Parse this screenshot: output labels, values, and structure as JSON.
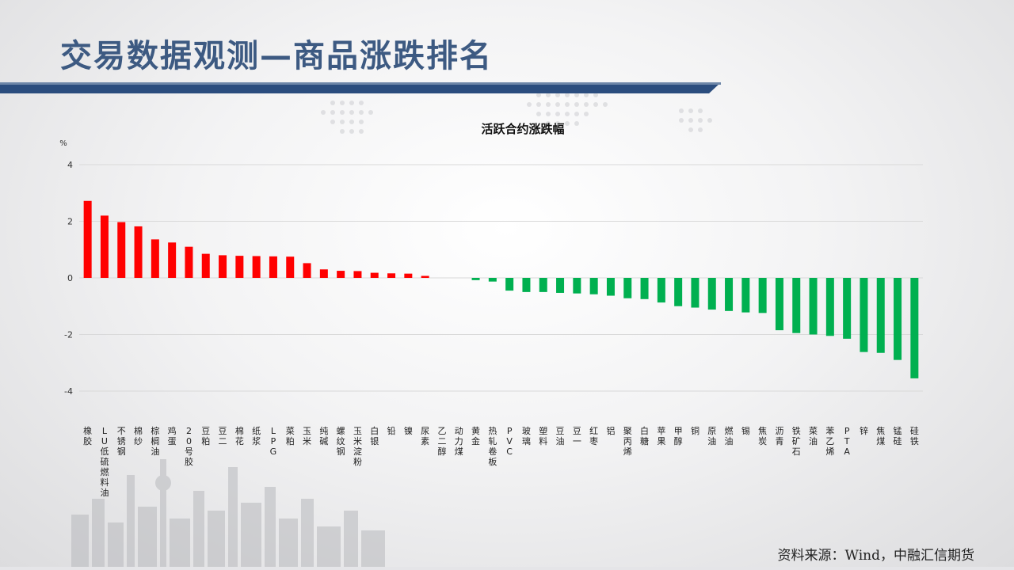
{
  "slide": {
    "title": "交易数据观测—商品涨跌排名",
    "source": "资料来源：Wind，中融汇信期货"
  },
  "theme": {
    "title_color": "#3d5a82",
    "bar_color": "#2b4d7e",
    "up_color": "#ff0000",
    "down_color": "#00b050",
    "grid_color": "#d9d9d9"
  },
  "chart_data": {
    "type": "bar",
    "title": "活跃合约涨跌幅",
    "ylabel": "%",
    "ylim": [
      -4,
      4
    ],
    "yticks": [
      4,
      2,
      0,
      -2,
      -4
    ],
    "grid": true,
    "categories": [
      "橡胶",
      "LU低硫燃料油",
      "不锈钢",
      "棉纱",
      "棕榈油",
      "鸡蛋",
      "20号胶",
      "豆粕",
      "豆二",
      "棉花",
      "纸浆",
      "LPG",
      "菜粕",
      "玉米",
      "纯碱",
      "螺纹钢",
      "玉米淀粉",
      "白银",
      "铅",
      "镍",
      "尿素",
      "乙二醇",
      "动力煤",
      "黄金",
      "热轧卷板",
      "PVC",
      "玻璃",
      "塑料",
      "豆油",
      "豆一",
      "红枣",
      "铝",
      "聚丙烯",
      "白糖",
      "苹果",
      "甲醇",
      "铜",
      "原油",
      "燃油",
      "锡",
      "焦炭",
      "沥青",
      "铁矿石",
      "菜油",
      "苯乙烯",
      "PTA",
      "锌",
      "焦煤",
      "锰硅",
      "硅铁"
    ],
    "values": [
      2.72,
      2.2,
      1.97,
      1.82,
      1.36,
      1.25,
      1.1,
      0.85,
      0.8,
      0.78,
      0.77,
      0.76,
      0.75,
      0.52,
      0.3,
      0.25,
      0.24,
      0.18,
      0.16,
      0.15,
      0.07,
      0.0,
      0.0,
      -0.08,
      -0.13,
      -0.45,
      -0.5,
      -0.5,
      -0.53,
      -0.55,
      -0.58,
      -0.63,
      -0.72,
      -0.75,
      -0.87,
      -1.0,
      -1.05,
      -1.12,
      -1.17,
      -1.22,
      -1.24,
      -1.85,
      -1.95,
      -2.0,
      -2.05,
      -2.15,
      -2.62,
      -2.65,
      -2.9,
      -3.55
    ]
  }
}
